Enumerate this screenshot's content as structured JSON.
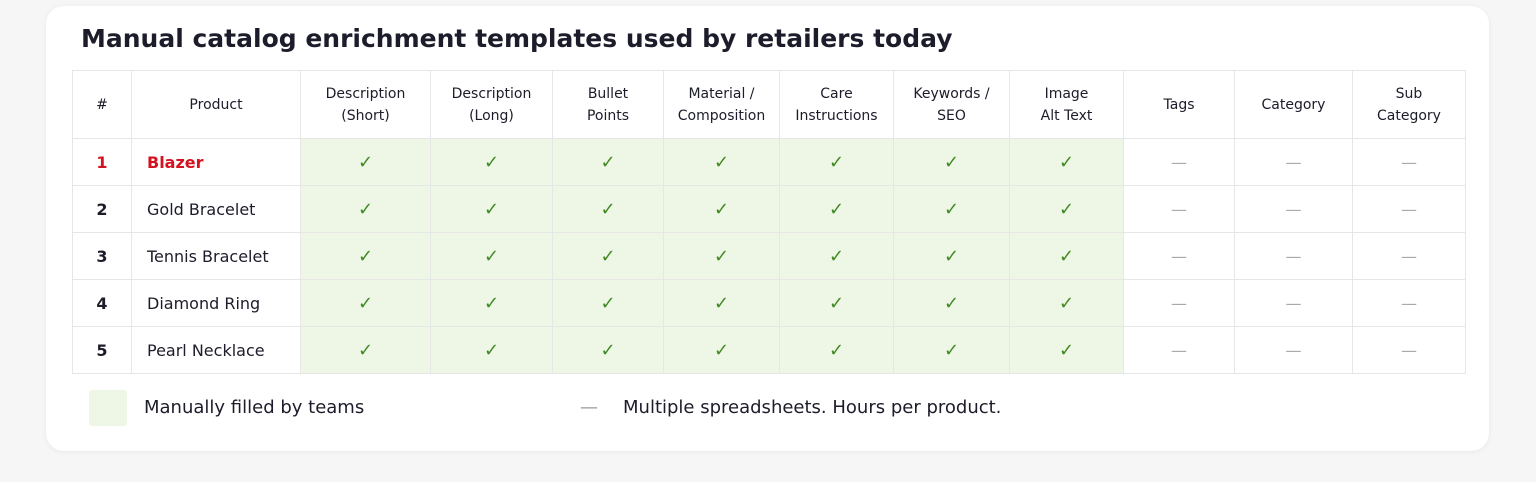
{
  "title": "Manual catalog enrichment templates used by retailers today",
  "table": {
    "headers": [
      [
        "#"
      ],
      [
        "Product"
      ],
      [
        "Description",
        "(Short)"
      ],
      [
        "Description",
        "(Long)"
      ],
      [
        "Bullet",
        "Points"
      ],
      [
        "Material /",
        "Composition"
      ],
      [
        "Care",
        "Instructions"
      ],
      [
        "Keywords /",
        "SEO"
      ],
      [
        "Image",
        "Alt Text"
      ],
      [
        "Tags"
      ],
      [
        "Category"
      ],
      [
        "Sub",
        "Category"
      ]
    ],
    "rows": [
      [
        "1",
        "Blazer",
        "✓",
        "✓",
        "✓",
        "✓",
        "✓",
        "✓",
        "✓",
        "—",
        "—",
        "—"
      ],
      [
        "2",
        "Gold Bracelet",
        "✓",
        "✓",
        "✓",
        "✓",
        "✓",
        "✓",
        "✓",
        "—",
        "—",
        "—"
      ],
      [
        "3",
        "Tennis Bracelet",
        "✓",
        "✓",
        "✓",
        "✓",
        "✓",
        "✓",
        "✓",
        "—",
        "—",
        "—"
      ],
      [
        "4",
        "Diamond Ring",
        "✓",
        "✓",
        "✓",
        "✓",
        "✓",
        "✓",
        "✓",
        "—",
        "—",
        "—"
      ],
      [
        "5",
        "Pearl Necklace",
        "✓",
        "✓",
        "✓",
        "✓",
        "✓",
        "✓",
        "✓",
        "—",
        "—",
        "—"
      ]
    ]
  },
  "legend": [
    {
      "label": "Manually filled by teams"
    },
    {
      "symbol": "—",
      "label": "Multiple spreadsheets. Hours per product."
    }
  ]
}
